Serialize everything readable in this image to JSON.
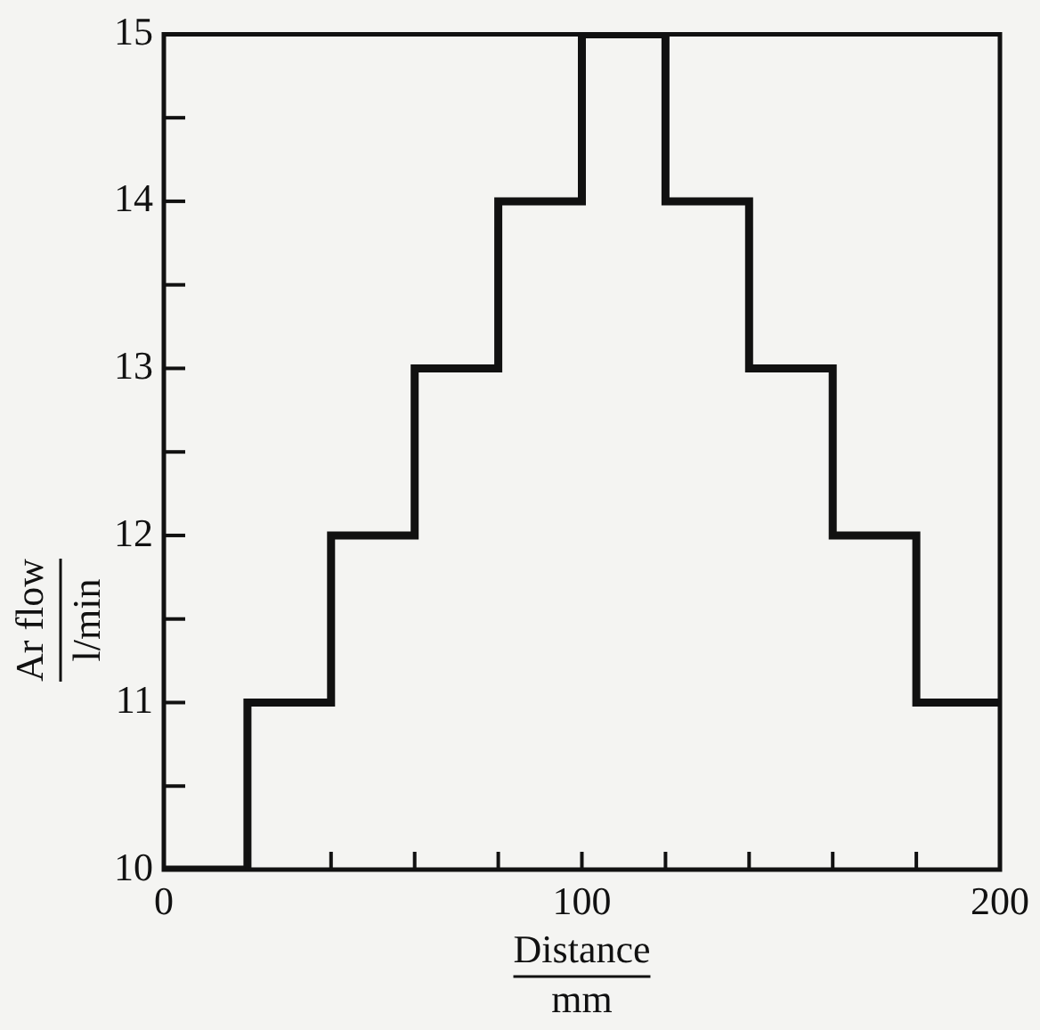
{
  "chart_data": {
    "type": "step",
    "xlabel": "Distance\nmm",
    "ylabel": "Ar flow\nl/min",
    "x": [
      0,
      20,
      40,
      60,
      80,
      100,
      120,
      140,
      160,
      180,
      200
    ],
    "series": [
      {
        "color": "#111111",
        "values": [
          10,
          11,
          12,
          13,
          14,
          15,
          14,
          13,
          12,
          11,
          11
        ]
      }
    ],
    "xlim": [
      0,
      200
    ],
    "ylim": [
      10,
      15
    ],
    "xticks": [
      0,
      {
        "value": 20,
        "label": null
      },
      {
        "value": 40,
        "label": null
      },
      {
        "value": 60,
        "label": null
      },
      {
        "value": 80,
        "label": null
      },
      100,
      {
        "value": 120,
        "label": null
      },
      {
        "value": 140,
        "label": null
      },
      {
        "value": 160,
        "label": null
      },
      {
        "value": 180,
        "label": null
      },
      200
    ],
    "yticks": [
      10,
      {
        "value": 10.5,
        "label": null
      },
      11,
      {
        "value": 11.5,
        "label": null
      },
      12,
      {
        "value": 12.5,
        "label": null
      },
      13,
      {
        "value": 13.5,
        "label": null
      },
      14,
      {
        "value": 14.5,
        "label": null
      },
      15
    ],
    "grid": false,
    "legend": false,
    "marker": "none",
    "line_style": "solid"
  }
}
